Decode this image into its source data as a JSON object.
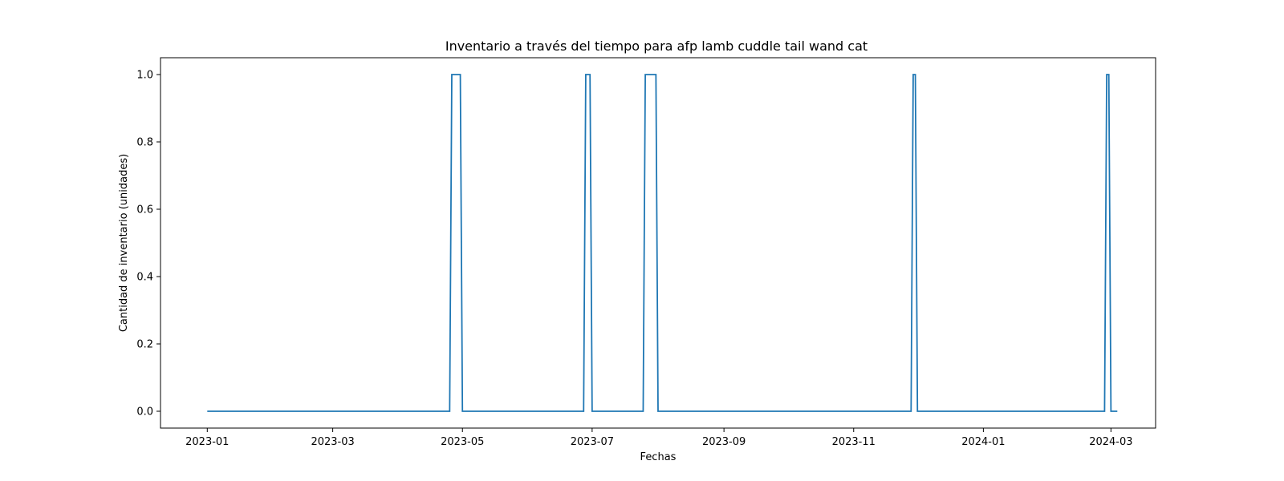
{
  "chart_data": {
    "type": "line",
    "title": "Inventario a través del tiempo para afp lamb cuddle tail wand cat",
    "xlabel": "Fechas",
    "ylabel": "Cantidad de inventario (unidades)",
    "xlim": [
      "2022-12-10",
      "2024-03-22"
    ],
    "ylim": [
      -0.05,
      1.05
    ],
    "x_ticks": [
      "2023-01",
      "2023-03",
      "2023-05",
      "2023-07",
      "2023-09",
      "2023-11",
      "2024-01",
      "2024-03"
    ],
    "y_ticks": [
      "0.0",
      "0.2",
      "0.4",
      "0.6",
      "0.8",
      "1.0"
    ],
    "grid": false,
    "legend": "none",
    "line_color": "#1f77b4",
    "series": [
      {
        "x": [
          "2023-01-01",
          "2023-04-25",
          "2023-04-26",
          "2023-04-30",
          "2023-05-01",
          "2023-06-27",
          "2023-06-28",
          "2023-06-30",
          "2023-07-01",
          "2023-07-25",
          "2023-07-26",
          "2023-07-31",
          "2023-08-01",
          "2023-11-28",
          "2023-11-29",
          "2023-11-30",
          "2023-12-01",
          "2024-02-27",
          "2024-02-28",
          "2024-02-29",
          "2024-03-01",
          "2024-03-04"
        ],
        "y": [
          0,
          0,
          1,
          1,
          0,
          0,
          1,
          1,
          0,
          0,
          1,
          1,
          0,
          0,
          1,
          1,
          0,
          0,
          1,
          1,
          0,
          0
        ]
      }
    ]
  }
}
